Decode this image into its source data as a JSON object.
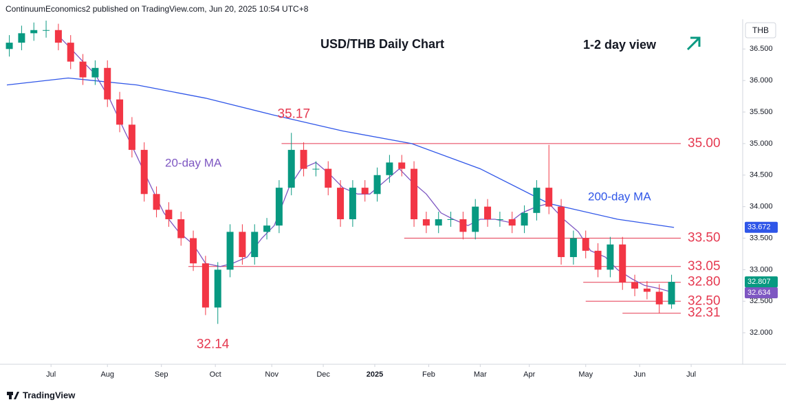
{
  "header": "ContinuumEconomics2 published on TradingView.com, Jun 20, 2025 10:54 UTC+8",
  "footer": "TradingView",
  "chart_data": {
    "type": "candlestick",
    "title": "USD/THB Daily Chart",
    "subtitle": "1-2 day view",
    "currency": "THB",
    "xlim": [
      0,
      300
    ],
    "ylim": [
      31.5,
      36.95
    ],
    "xticks": [
      {
        "value": 18,
        "label": "Jul"
      },
      {
        "value": 41,
        "label": "Aug"
      },
      {
        "value": 63,
        "label": "Sep"
      },
      {
        "value": 85,
        "label": "Oct"
      },
      {
        "value": 108,
        "label": "Nov"
      },
      {
        "value": 129,
        "label": "Dec"
      },
      {
        "value": 150,
        "label": "2025"
      },
      {
        "value": 172,
        "label": "Feb"
      },
      {
        "value": 193,
        "label": "Mar"
      },
      {
        "value": 213,
        "label": "Apr"
      },
      {
        "value": 236,
        "label": "May"
      },
      {
        "value": 258,
        "label": "Jun"
      },
      {
        "value": 279,
        "label": "Jul"
      }
    ],
    "yticks": [
      {
        "value": 32,
        "label": "32.000"
      },
      {
        "value": 32.5,
        "label": "32.500"
      },
      {
        "value": 33,
        "label": "33.000"
      },
      {
        "value": 33.5,
        "label": "33.500"
      },
      {
        "value": 34,
        "label": "34.000"
      },
      {
        "value": 34.5,
        "label": "34.500"
      },
      {
        "value": 35,
        "label": "35.000"
      },
      {
        "value": 35.5,
        "label": "35.500"
      },
      {
        "value": 36,
        "label": "36.000"
      },
      {
        "value": 36.5,
        "label": "36.500"
      }
    ],
    "up_color": "#089981",
    "down_color": "#f23645",
    "candles": {
      "x": [
        1,
        6,
        11,
        16,
        21,
        26,
        31,
        36,
        41,
        46,
        51,
        56,
        61,
        66,
        71,
        76,
        81,
        86,
        91,
        96,
        101,
        106,
        111,
        116,
        121,
        126,
        131,
        136,
        141,
        146,
        151,
        156,
        161,
        166,
        171,
        176,
        181,
        186,
        191,
        196,
        201,
        206,
        211,
        216,
        221,
        226,
        231,
        236,
        241,
        246,
        251,
        256,
        261,
        266,
        271
      ],
      "open": [
        36.5,
        36.6,
        36.75,
        36.8,
        36.8,
        36.6,
        36.3,
        36.05,
        36.2,
        35.7,
        35.3,
        34.9,
        34.2,
        33.95,
        33.8,
        33.5,
        33.1,
        32.4,
        33.0,
        33.6,
        33.2,
        33.6,
        33.7,
        34.3,
        34.9,
        34.6,
        34.6,
        34.3,
        33.8,
        34.3,
        34.2,
        34.5,
        34.7,
        34.6,
        33.8,
        33.7,
        33.8,
        33.8,
        33.6,
        34.0,
        33.8,
        33.8,
        33.7,
        33.9,
        34.3,
        34.0,
        33.2,
        33.5,
        33.3,
        33.0,
        33.4,
        32.8,
        32.7,
        32.65,
        32.45
      ],
      "high": [
        36.72,
        36.87,
        36.92,
        36.95,
        36.9,
        36.72,
        36.42,
        36.32,
        36.32,
        35.82,
        35.42,
        35.02,
        34.32,
        34.07,
        33.92,
        33.62,
        33.22,
        33.12,
        33.72,
        33.72,
        33.72,
        33.82,
        34.42,
        35.17,
        35.02,
        34.72,
        34.72,
        34.42,
        34.42,
        34.42,
        34.62,
        34.82,
        34.82,
        34.72,
        33.92,
        33.92,
        33.92,
        33.92,
        34.12,
        34.12,
        33.92,
        33.92,
        34.02,
        34.42,
        34.98,
        34.12,
        33.62,
        33.62,
        33.42,
        33.52,
        33.52,
        32.92,
        32.82,
        32.77,
        32.92
      ],
      "low": [
        36.38,
        36.48,
        36.63,
        36.68,
        36.48,
        36.18,
        35.93,
        35.93,
        35.58,
        35.18,
        34.78,
        34.08,
        33.83,
        33.68,
        33.38,
        32.98,
        32.28,
        32.14,
        32.88,
        33.08,
        33.08,
        33.48,
        33.58,
        34.18,
        34.48,
        34.48,
        34.18,
        33.68,
        33.68,
        34.08,
        34.08,
        34.38,
        34.48,
        33.68,
        33.58,
        33.58,
        33.68,
        33.48,
        33.48,
        33.68,
        33.68,
        33.58,
        33.58,
        33.78,
        33.88,
        33.08,
        33.08,
        33.18,
        32.88,
        32.88,
        32.68,
        32.58,
        32.53,
        32.31,
        32.38
      ],
      "close": [
        36.6,
        36.75,
        36.8,
        36.8,
        36.6,
        36.3,
        36.05,
        36.2,
        35.7,
        35.3,
        34.9,
        34.2,
        33.95,
        33.8,
        33.5,
        33.1,
        32.4,
        33.0,
        33.6,
        33.2,
        33.6,
        33.7,
        34.3,
        34.9,
        34.6,
        34.6,
        34.3,
        33.8,
        34.3,
        34.2,
        34.5,
        34.7,
        34.6,
        33.8,
        33.7,
        33.8,
        33.8,
        33.6,
        34.0,
        33.8,
        33.8,
        33.7,
        33.9,
        34.3,
        34.0,
        33.2,
        33.5,
        33.3,
        33.0,
        33.4,
        32.8,
        32.7,
        32.65,
        32.45,
        32.807
      ]
    },
    "series": [
      {
        "name": "20-day MA",
        "color": "#7e57c2",
        "x": [
          20,
          25,
          31,
          36,
          42,
          48,
          53,
          59,
          64,
          70,
          76,
          81,
          87,
          92,
          98,
          104,
          109,
          115,
          120,
          126,
          132,
          137,
          143,
          148,
          154,
          160,
          165,
          171,
          177,
          182,
          188,
          193,
          199,
          205,
          210,
          216,
          221,
          227,
          233,
          238,
          244,
          249,
          255,
          260,
          266,
          272
        ],
        "values": [
          36.75,
          36.55,
          36.3,
          36.1,
          35.7,
          35.2,
          34.8,
          34.3,
          33.9,
          33.6,
          33.4,
          33.1,
          33.05,
          33.1,
          33.2,
          33.5,
          33.7,
          34.3,
          34.6,
          34.7,
          34.5,
          34.3,
          34.2,
          34.2,
          34.4,
          34.6,
          34.4,
          34.2,
          33.9,
          33.8,
          33.7,
          33.8,
          33.8,
          33.75,
          33.9,
          34.0,
          34.05,
          33.8,
          33.6,
          33.3,
          33.2,
          33.0,
          32.85,
          32.75,
          32.7,
          32.634
        ]
      },
      {
        "name": "200-day MA",
        "color": "#2f56e8",
        "x": [
          0,
          25,
          53,
          81,
          109,
          137,
          165,
          193,
          221,
          249,
          272
        ],
        "values": [
          35.93,
          36.04,
          35.93,
          35.72,
          35.45,
          35.2,
          35.0,
          34.6,
          34.05,
          33.8,
          33.67
        ]
      }
    ],
    "levels": {
      "values": [
        35,
        33.5,
        33.05,
        32.8,
        32.5,
        32.31
      ],
      "value_labels": [
        "35.00",
        "33.50",
        "33.05",
        "32.80",
        "32.50",
        "32.31"
      ],
      "start": [
        112,
        162,
        74,
        235,
        236,
        251
      ],
      "color": "#e53950"
    },
    "extremes": {
      "values": [
        35.17,
        32.14
      ],
      "x": [
        117,
        84
      ]
    },
    "price_tags": {
      "values": [
        33.672,
        32.807,
        32.634
      ],
      "colors": [
        "#2f56e8",
        "#089981",
        "#7e57c2"
      ]
    }
  }
}
